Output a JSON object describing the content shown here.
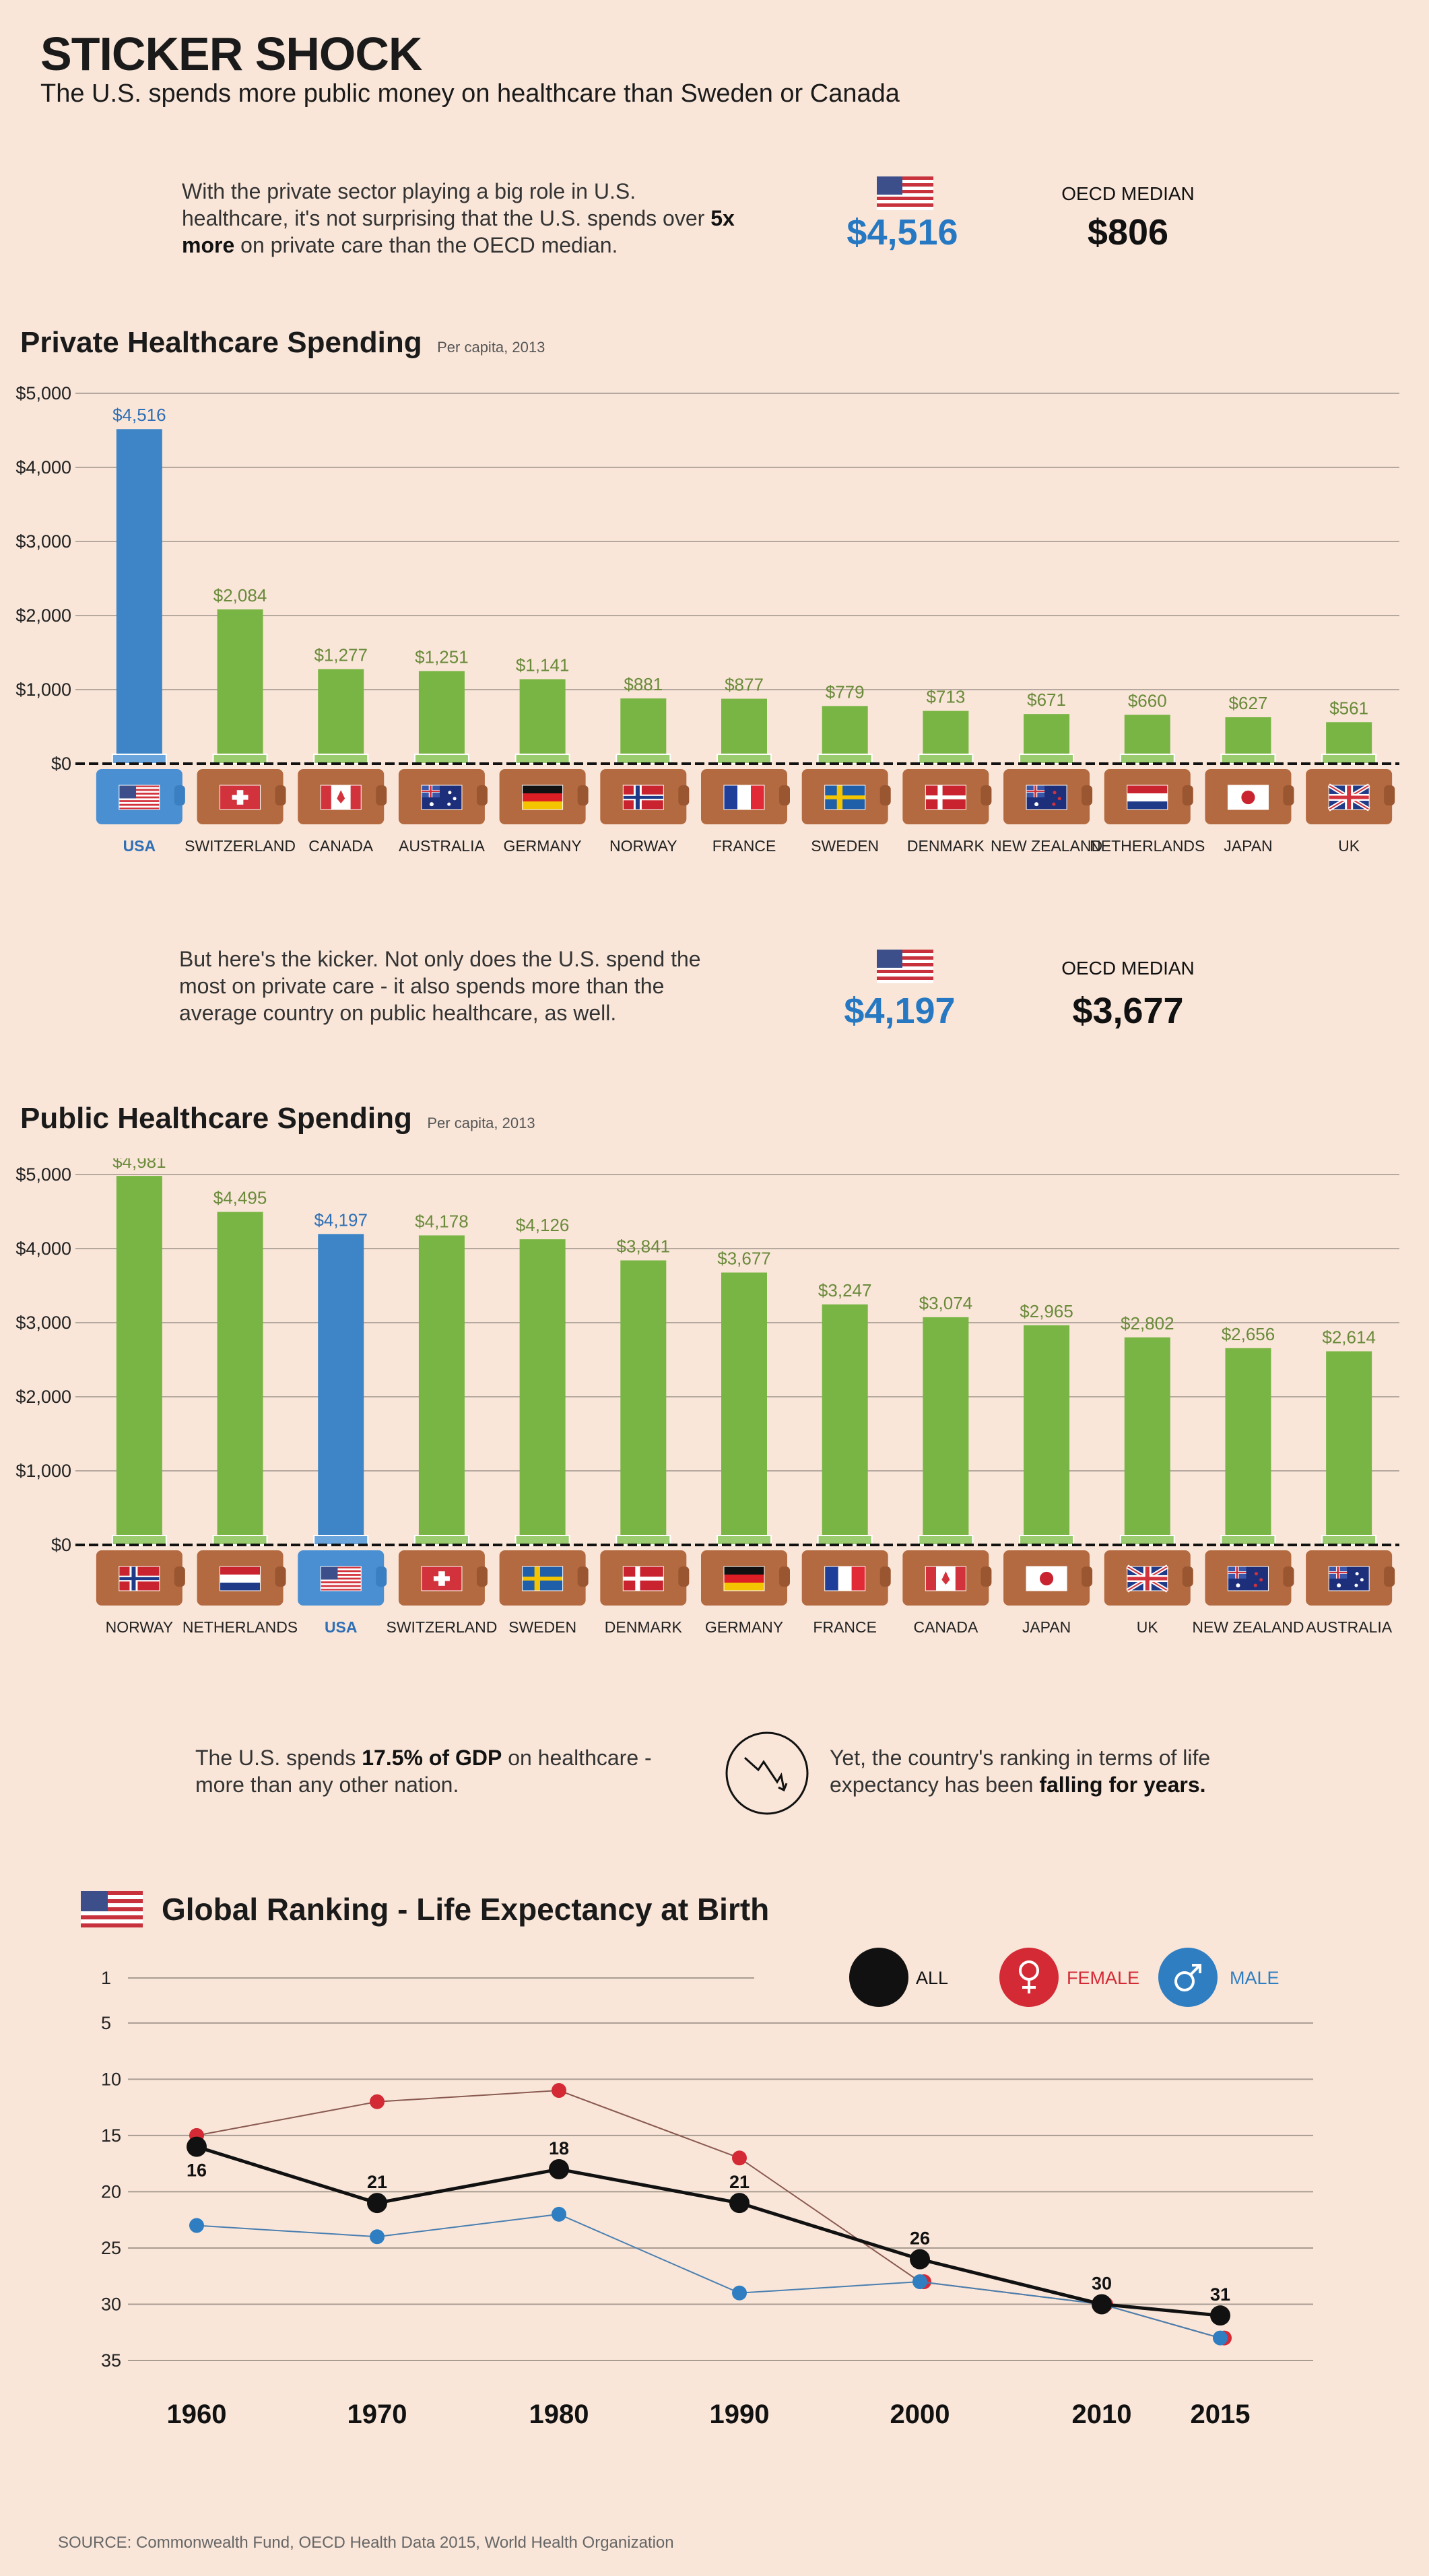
{
  "header": {
    "title": "STICKER SHOCK",
    "subtitle": "The U.S. spends more public money on healthcare than Sweden or Canada"
  },
  "callout_private": {
    "text_before": "With the private sector playing a big role in U.S. healthcare, it's not surprising that the U.S. spends over ",
    "text_bold": "5x more",
    "text_after": " on private care than the OECD median.",
    "us_value": "$4,516",
    "median_label": "OECD MEDIAN",
    "median_value": "$806"
  },
  "callout_public": {
    "text": "But here's the kicker. Not only does the U.S. spend the most on private care - it also spends more than the average country on public healthcare, as well.",
    "us_value": "$4,197",
    "median_label": "OECD MEDIAN",
    "median_value": "$3,677"
  },
  "callout_gdp": {
    "left_before": "The U.S. spends ",
    "left_bold": "17.5% of GDP",
    "left_after": " on healthcare - more than any other nation.",
    "right_before": "Yet, the country's ranking in terms of life expectancy has been ",
    "right_bold": "falling for years."
  },
  "source": "SOURCE: Commonwealth Fund, OECD Health Data 2015, World Health Organization",
  "colors": {
    "us_blue": "#3d85c6",
    "green": "#79b544",
    "wallet": "#b46a40",
    "female_red": "#d42a35",
    "male_blue": "#2f7ec2",
    "all_black": "#111111"
  },
  "chart_data": [
    {
      "type": "bar",
      "title": "Private Healthcare Spending",
      "subtitle": "Per capita, 2013",
      "ylim": [
        0,
        5000
      ],
      "yticks": [
        "$0",
        "$1,000",
        "$2,000",
        "$3,000",
        "$4,000",
        "$5,000"
      ],
      "highlight": "USA",
      "categories": [
        "USA",
        "SWITZERLAND",
        "CANADA",
        "AUSTRALIA",
        "GERMANY",
        "NORWAY",
        "FRANCE",
        "SWEDEN",
        "DENMARK",
        "NEW ZEALAND",
        "NETHERLANDS",
        "JAPAN",
        "UK"
      ],
      "values": [
        4516,
        2084,
        1277,
        1251,
        1141,
        881,
        877,
        779,
        713,
        671,
        660,
        627,
        561
      ],
      "labels": [
        "$4,516",
        "$2,084",
        "$1,277",
        "$1,251",
        "$1,141",
        "$881",
        "$877",
        "$779",
        "$713",
        "$671",
        "$660",
        "$627",
        "$561"
      ]
    },
    {
      "type": "bar",
      "title": "Public Healthcare Spending",
      "subtitle": "Per capita, 2013",
      "ylim": [
        0,
        5000
      ],
      "yticks": [
        "$0",
        "$1,000",
        "$2,000",
        "$3,000",
        "$4,000",
        "$5,000"
      ],
      "highlight": "USA",
      "categories": [
        "NORWAY",
        "NETHERLANDS",
        "USA",
        "SWITZERLAND",
        "SWEDEN",
        "DENMARK",
        "GERMANY",
        "FRANCE",
        "CANADA",
        "JAPAN",
        "UK",
        "NEW ZEALAND",
        "AUSTRALIA"
      ],
      "values": [
        4981,
        4495,
        4197,
        4178,
        4126,
        3841,
        3677,
        3247,
        3074,
        2965,
        2802,
        2656,
        2614
      ],
      "labels": [
        "$4,981",
        "$4,495",
        "$4,197",
        "$4,178",
        "$4,126",
        "$3,841",
        "$3,677",
        "$3,247",
        "$3,074",
        "$2,965",
        "$2,802",
        "$2,656",
        "$2,614"
      ]
    },
    {
      "type": "line",
      "title": "Global Ranking - Life Expectancy at Birth",
      "y_inverted": true,
      "yticks": [
        1,
        5,
        10,
        15,
        20,
        25,
        30,
        35
      ],
      "ylim": [
        1,
        35
      ],
      "x": [
        1960,
        1970,
        1980,
        1990,
        2000,
        2010,
        2015
      ],
      "legend": [
        "ALL",
        "FEMALE",
        "MALE"
      ],
      "series": [
        {
          "name": "ALL",
          "values": [
            16,
            21,
            18,
            21,
            26,
            30,
            31
          ],
          "labels": [
            "16",
            "21",
            "18",
            "21",
            "26",
            "30",
            "31"
          ]
        },
        {
          "name": "FEMALE",
          "values": [
            15,
            12,
            11,
            17,
            28,
            30,
            33
          ]
        },
        {
          "name": "MALE",
          "values": [
            23,
            24,
            22,
            29,
            28,
            30,
            33
          ]
        }
      ]
    }
  ]
}
